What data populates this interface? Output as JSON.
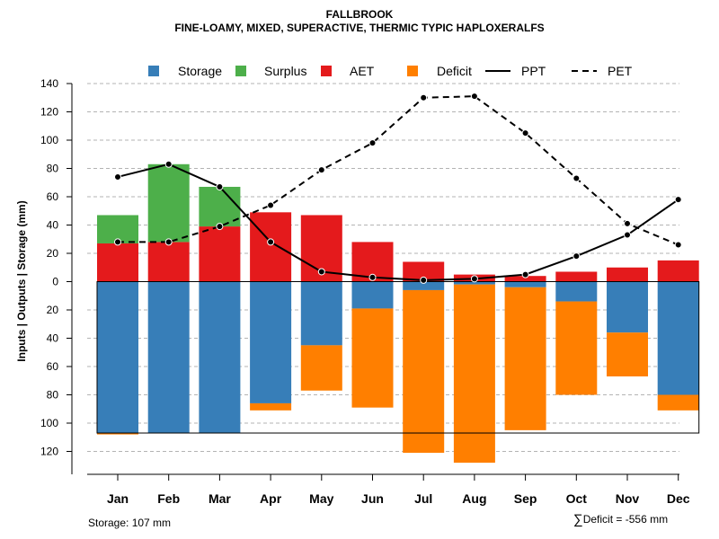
{
  "chart_data": {
    "type": "bar",
    "title": "FALLBROOK",
    "subtitle": "FINE-LOAMY, MIXED, SUPERACTIVE, THERMIC TYPIC HAPLOXERALFS",
    "ylabel": "Inputs | Outputs | Storage    (mm)",
    "xlabel": "",
    "ylim": [
      -130,
      140
    ],
    "y_ticks": [
      140,
      120,
      100,
      80,
      60,
      40,
      20,
      0,
      -20,
      -40,
      -60,
      -80,
      -100,
      -120
    ],
    "y_tick_labels": [
      "140",
      "120",
      "100",
      "80",
      "60",
      "40",
      "20",
      "0",
      "20",
      "40",
      "60",
      "80",
      "100",
      "120"
    ],
    "categories": [
      "Jan",
      "Feb",
      "Mar",
      "Apr",
      "May",
      "Jun",
      "Jul",
      "Aug",
      "Sep",
      "Oct",
      "Nov",
      "Dec"
    ],
    "legend": [
      {
        "label": "Storage",
        "kind": "box",
        "color": "#377eb8"
      },
      {
        "label": "Surplus",
        "kind": "box",
        "color": "#4daf4a"
      },
      {
        "label": "AET",
        "kind": "box",
        "color": "#e41a1c"
      },
      {
        "label": "Deficit",
        "kind": "box",
        "color": "#ff7f00"
      },
      {
        "label": "PPT",
        "kind": "solid"
      },
      {
        "label": "PET",
        "kind": "dashed"
      }
    ],
    "legend_position": "top",
    "grid": true,
    "series": [
      {
        "name": "AET",
        "color": "#e41a1c",
        "values": [
          27,
          28,
          39,
          49,
          47,
          28,
          14,
          5,
          4,
          7,
          10,
          15
        ]
      },
      {
        "name": "Surplus",
        "color": "#4daf4a",
        "values": [
          20,
          55,
          28,
          0,
          0,
          0,
          0,
          0,
          0,
          0,
          0,
          0
        ]
      },
      {
        "name": "Storage",
        "color": "#377eb8",
        "values": [
          107,
          107,
          107,
          86,
          45,
          19,
          6,
          2,
          4,
          14,
          36,
          80
        ]
      },
      {
        "name": "Deficit",
        "color": "#ff7f00",
        "values": [
          1,
          0,
          0,
          5,
          32,
          70,
          115,
          126,
          101,
          66,
          31,
          11
        ]
      },
      {
        "name": "PPT",
        "style": "solid",
        "values": [
          74,
          83,
          67,
          28,
          7,
          3,
          1,
          2,
          5,
          18,
          33,
          58
        ]
      },
      {
        "name": "PET",
        "style": "dashed",
        "values": [
          28,
          28,
          39,
          54,
          79,
          98,
          130,
          131,
          105,
          73,
          41,
          26
        ]
      }
    ],
    "storage_capacity": 107,
    "storage_note": "Storage: 107 mm",
    "deficit_symbol": "∑",
    "deficit_note": "Deficit = -556 mm"
  }
}
